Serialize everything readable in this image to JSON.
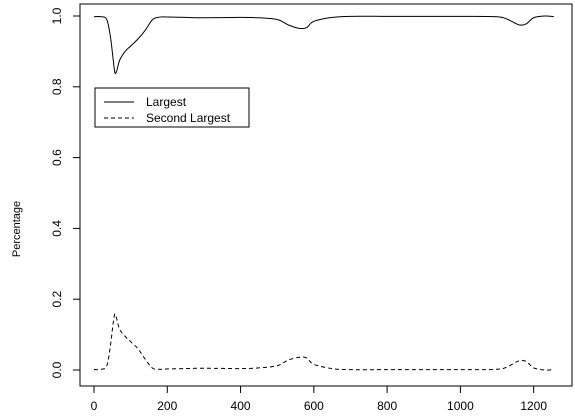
{
  "chart_data": {
    "type": "line",
    "title": "",
    "xlabel": "",
    "ylabel": "Percentage",
    "xlim": [
      0,
      1260
    ],
    "ylim": [
      0.0,
      1.0
    ],
    "grid": false,
    "legend_position": "upper-left",
    "x_ticks": [
      0,
      200,
      400,
      600,
      800,
      1000,
      1200
    ],
    "x_tick_labels": [
      "0",
      "200",
      "400",
      "600",
      "800",
      "1000",
      "1200"
    ],
    "y_ticks": [
      0.0,
      0.2,
      0.4,
      0.6,
      0.8,
      1.0
    ],
    "y_tick_labels": [
      "0.0",
      "0.2",
      "0.4",
      "0.6",
      "0.8",
      "1.0"
    ],
    "series": [
      {
        "name": "Largest",
        "dash": "solid",
        "color": "#000000",
        "x": [
          0,
          20,
          35,
          45,
          52,
          57,
          62,
          70,
          85,
          100,
          120,
          140,
          160,
          180,
          200,
          250,
          300,
          400,
          450,
          500,
          530,
          560,
          580,
          600,
          650,
          700,
          800,
          900,
          1000,
          1100,
          1130,
          1160,
          1180,
          1200,
          1230,
          1255
        ],
        "y": [
          0.998,
          0.998,
          0.99,
          0.94,
          0.88,
          0.84,
          0.845,
          0.875,
          0.9,
          0.915,
          0.935,
          0.96,
          0.99,
          0.997,
          0.997,
          0.996,
          0.995,
          0.996,
          0.995,
          0.99,
          0.975,
          0.965,
          0.967,
          0.985,
          0.996,
          0.999,
          0.999,
          0.999,
          0.999,
          0.998,
          0.99,
          0.975,
          0.978,
          0.995,
          1.0,
          0.998
        ]
      },
      {
        "name": "Second Largest",
        "dash": "dashed",
        "color": "#000000",
        "x": [
          0,
          20,
          35,
          45,
          52,
          57,
          62,
          70,
          85,
          100,
          120,
          140,
          160,
          180,
          200,
          250,
          300,
          400,
          450,
          500,
          530,
          560,
          580,
          600,
          650,
          700,
          800,
          900,
          1000,
          1100,
          1130,
          1160,
          1180,
          1200,
          1230,
          1255
        ],
        "y": [
          0.001,
          0.002,
          0.012,
          0.07,
          0.13,
          0.158,
          0.145,
          0.115,
          0.095,
          0.08,
          0.06,
          0.03,
          0.005,
          0.002,
          0.003,
          0.004,
          0.005,
          0.004,
          0.006,
          0.012,
          0.028,
          0.036,
          0.034,
          0.016,
          0.004,
          0.001,
          0.001,
          0.001,
          0.001,
          0.002,
          0.01,
          0.026,
          0.024,
          0.006,
          0.0,
          0.001
        ]
      }
    ]
  }
}
